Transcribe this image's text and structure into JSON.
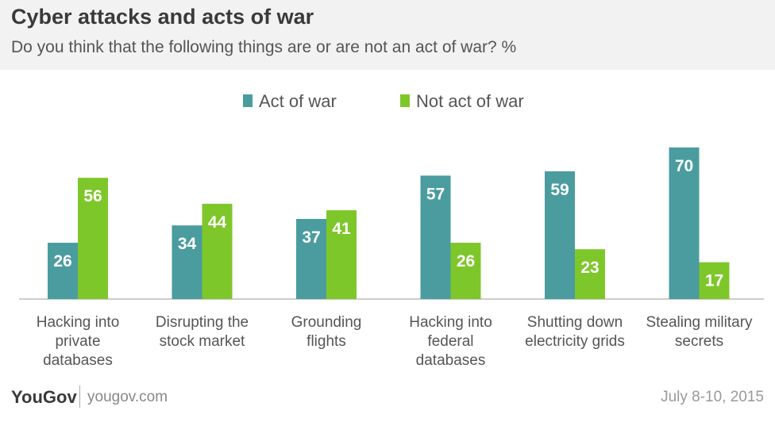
{
  "title": "Cyber attacks and acts of war",
  "subtitle": "Do you think that the following things are or are not an act of war? %",
  "footer": {
    "logo_main": "YouGov",
    "logo_accent": "",
    "site": "yougov.com",
    "date": "July 8-10, 2015"
  },
  "chart_data": {
    "type": "bar",
    "categories": [
      [
        "Hacking into",
        "private",
        "databases"
      ],
      [
        "Disrupting the",
        "stock market"
      ],
      [
        "Grounding",
        "flights"
      ],
      [
        "Hacking into",
        "federal",
        "databases"
      ],
      [
        "Shutting down",
        "electricity grids"
      ],
      [
        "Stealing military",
        "secrets"
      ]
    ],
    "series": [
      {
        "name": "Act of war",
        "color": "#4a9c9f",
        "values": [
          26,
          34,
          37,
          57,
          59,
          70
        ]
      },
      {
        "name": "Not act of war",
        "color": "#7ec72a",
        "values": [
          56,
          44,
          41,
          26,
          23,
          17
        ]
      }
    ],
    "legend_position": "top-center",
    "grid": false,
    "ylim": [
      0,
      80
    ]
  }
}
